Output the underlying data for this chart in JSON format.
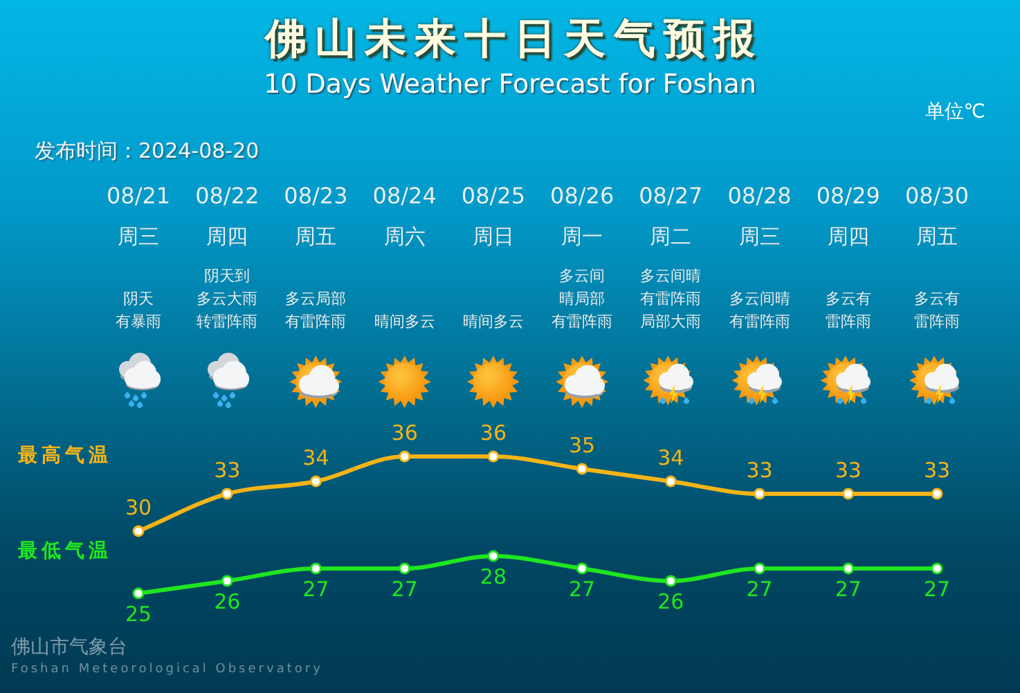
{
  "chart_data": {
    "type": "line",
    "title": "佛山未来十日天气预报",
    "subtitle": "10 Days Weather Forecast for Foshan",
    "ylabel": "单位℃",
    "categories": [
      "08/21",
      "08/22",
      "08/23",
      "08/24",
      "08/25",
      "08/26",
      "08/27",
      "08/28",
      "08/29",
      "08/30"
    ],
    "series": [
      {
        "name": "最高气温",
        "color": "#f5b417",
        "values": [
          30,
          33,
          34,
          36,
          36,
          35,
          34,
          33,
          33,
          33
        ]
      },
      {
        "name": "最低气温",
        "color": "#1fe61f",
        "values": [
          25,
          26,
          27,
          27,
          28,
          27,
          26,
          27,
          27,
          27
        ]
      }
    ],
    "data_labels": true,
    "tick_labels": "x",
    "marker": "circle",
    "line_style": "solid",
    "legend": false,
    "annotations": [
      "发布时间：2024-08-20",
      "周三",
      "阴天有暴雨",
      "周四",
      "阴天到多云大雨转雷阵雨",
      "周五",
      "多云局部有雷阵雨",
      "周六",
      "晴间多云",
      "周日",
      "晴间多云",
      "周一",
      "多云间晴局部有雷阵雨",
      "周二",
      "多云间晴有雷阵雨局部大雨",
      "周三",
      "多云间晴有雷阵雨",
      "周四",
      "多云有雷阵雨",
      "周五",
      "多云有雷阵雨",
      "佛山市气象台",
      "Foshan Meteorological Observatory"
    ]
  }
}
